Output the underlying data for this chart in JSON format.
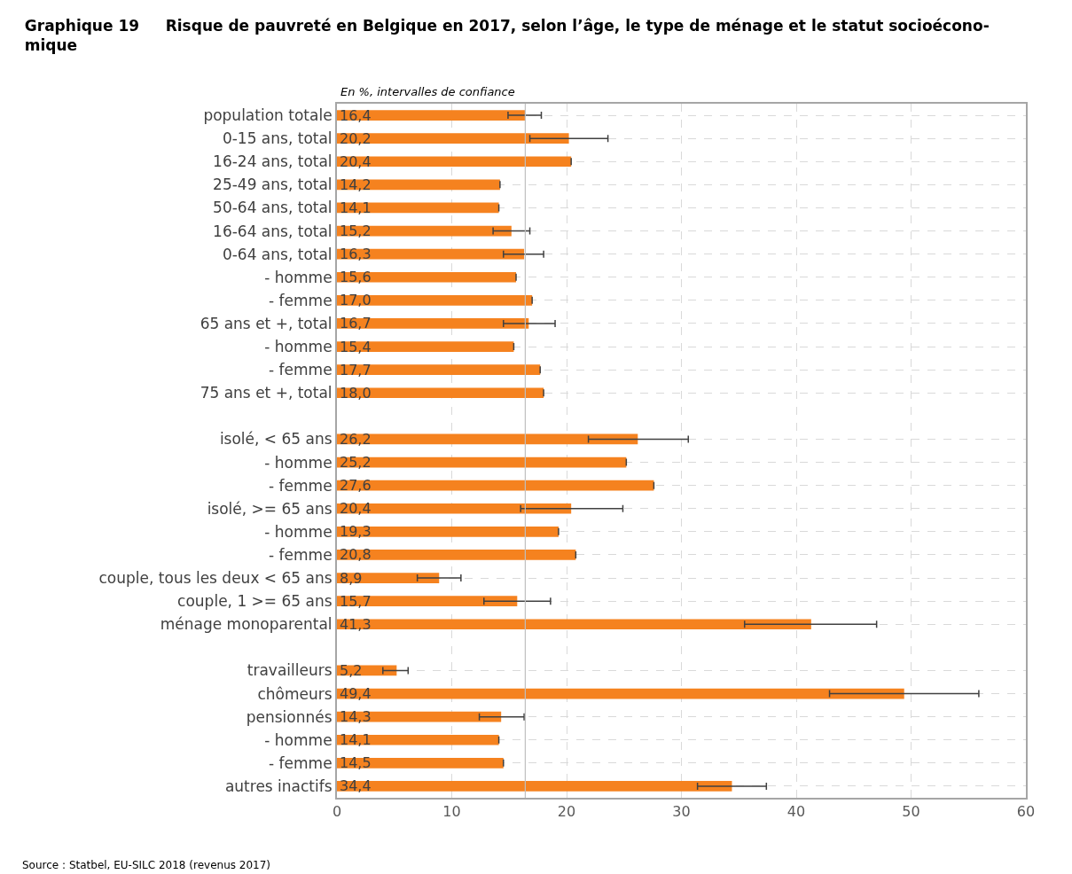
{
  "chart_data": {
    "type": "bar",
    "orientation": "horizontal",
    "title": "Graphique 19     Risque de pauvreté en Belgique en 2017, selon l’âge, le type de ménage et le statut socioécono-\nmique",
    "subtitle": "En %, intervalles de confiance",
    "categories": [
      "population totale",
      "0-15 ans, total",
      "16-24 ans, total",
      "25-49 ans, total",
      "50-64 ans, total",
      "16-64 ans, total",
      "0-64 ans, total",
      "- homme",
      "- femme",
      "65 ans et +, total",
      "- homme",
      "- femme",
      "75 ans et +, total",
      null,
      "isolé, < 65 ans",
      "- homme",
      "- femme",
      "isolé, >= 65 ans",
      "- homme",
      "- femme",
      "couple, tous les deux < 65 ans",
      "couple, 1 >= 65 ans",
      "ménage monoparental",
      null,
      "travailleurs",
      "chômeurs",
      "pensionnés",
      "- homme",
      "- femme",
      "autres inactifs"
    ],
    "values": [
      16.4,
      20.2,
      20.4,
      14.2,
      14.1,
      15.2,
      16.3,
      15.6,
      17.0,
      16.7,
      15.4,
      17.7,
      18.0,
      null,
      26.2,
      25.2,
      27.6,
      20.4,
      19.3,
      20.8,
      8.9,
      15.7,
      41.3,
      null,
      5.2,
      49.4,
      14.3,
      14.1,
      14.5,
      34.4
    ],
    "value_labels": [
      "16,4",
      "20,2",
      "20,4",
      "14,2",
      "14,1",
      "15,2",
      "16,3",
      "15,6",
      "17,0",
      "16,7",
      "15,4",
      "17,7",
      "18,0",
      null,
      "26,2",
      "25,2",
      "27,6",
      "20,4",
      "19,3",
      "20,8",
      "8,9",
      "15,7",
      "41,3",
      null,
      "5,2",
      "49,4",
      "14,3",
      "14,1",
      "14,5",
      "34,4"
    ],
    "errors": [
      [
        14.9,
        17.8
      ],
      [
        16.8,
        23.6
      ],
      null,
      null,
      null,
      [
        13.6,
        16.8
      ],
      [
        14.5,
        18.0
      ],
      null,
      null,
      [
        14.5,
        19.0
      ],
      null,
      null,
      null,
      null,
      [
        21.9,
        30.6
      ],
      null,
      null,
      [
        16.0,
        24.9
      ],
      null,
      null,
      [
        7.0,
        10.8
      ],
      [
        12.8,
        18.6
      ],
      [
        35.5,
        47.0
      ],
      null,
      [
        4.0,
        6.2
      ],
      [
        42.9,
        55.9
      ],
      [
        12.4,
        16.3
      ],
      null,
      null,
      [
        31.4,
        37.4
      ]
    ],
    "color": "#f5821f",
    "xlim": [
      0,
      60
    ],
    "xticks": [
      0,
      10,
      20,
      30,
      40,
      50,
      60
    ],
    "grid": true,
    "ref_lines": [
      {
        "axis": "x",
        "value": 16.4,
        "color": "#bfbfbf"
      }
    ],
    "annotations": [
      "Source : Statbel, EU-SILC 2018 (revenus 2017)"
    ]
  }
}
